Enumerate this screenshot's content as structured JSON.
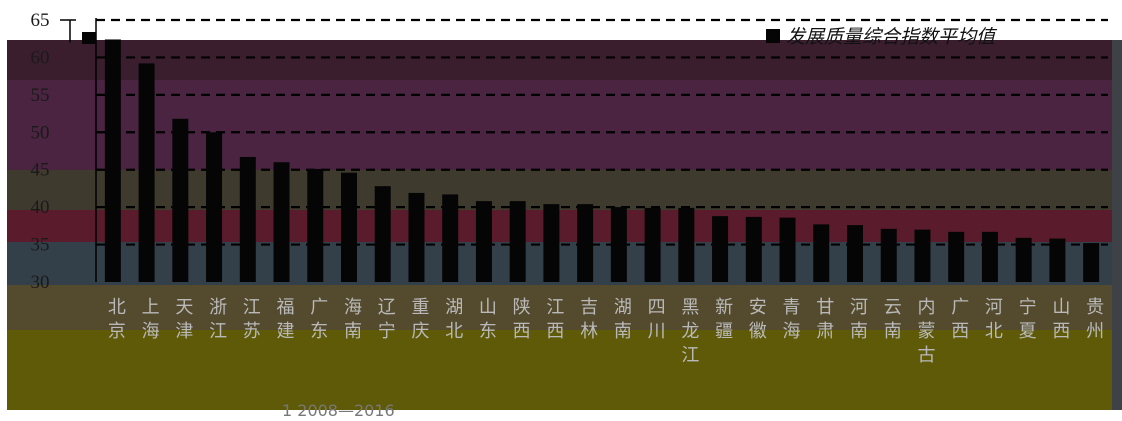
{
  "caption": "1   2008—2016",
  "colors": {
    "bar": "#050505",
    "grid": "#000000",
    "band_top": "#3a1e2e",
    "band_upper": "#4a2440",
    "band_mid": "#3f3a2e",
    "band_red": "#5a1c2c",
    "band_blue": "#33404a",
    "band_brown": "#544a2e",
    "band_olive": "#5e5a07",
    "band_edge": "#3e4247"
  },
  "chart_data": {
    "type": "bar",
    "categories": [
      "北京",
      "上海",
      "天津",
      "浙江",
      "江苏",
      "福建",
      "广东",
      "海南",
      "辽宁",
      "重庆",
      "湖北",
      "山东",
      "陕西",
      "江西",
      "吉林",
      "湖南",
      "四川",
      "黑龙江",
      "新疆",
      "安徽",
      "青海",
      "甘肃",
      "河南",
      "云南",
      "内蒙古",
      "广西",
      "河北",
      "宁夏",
      "山西",
      "贵州"
    ],
    "series": [
      {
        "name": "发展质量综合指数平均值",
        "values": [
          62.4,
          59.2,
          51.8,
          50.0,
          46.7,
          46.0,
          45.1,
          44.6,
          42.8,
          41.9,
          41.7,
          40.8,
          40.8,
          40.4,
          40.4,
          40.0,
          39.9,
          39.9,
          38.8,
          38.7,
          38.6,
          37.7,
          37.6,
          37.1,
          37.0,
          36.7,
          36.7,
          35.9,
          35.8,
          35.2
        ]
      }
    ],
    "y_ticks": [
      30,
      35,
      40,
      45,
      50,
      55,
      60,
      65
    ],
    "ylim": [
      30,
      65
    ],
    "grid": true,
    "legend_position": "top-right"
  }
}
